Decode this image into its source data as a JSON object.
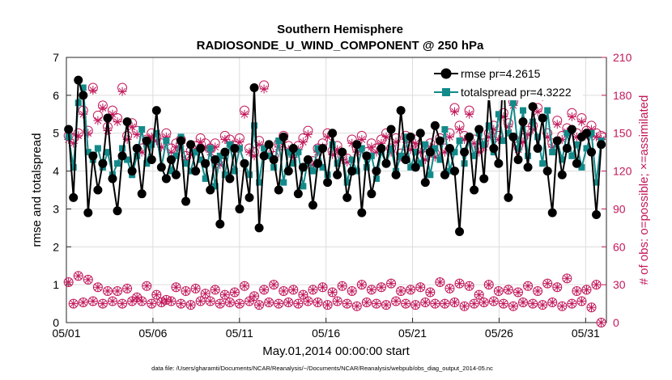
{
  "chart_data": {
    "type": "line",
    "title": "Southern Hemisphere",
    "subtitle": "RADIOSONDE_U_WIND_COMPONENT @ 250 hPa",
    "xlabel": "May.01,2014 00:00:00 start",
    "ylabel": "rmse and totalspread",
    "y2label": "# of obs: o=possible; ×=assimilated",
    "footnote": "data file: /Users/gharamti/Documents/NCAR/Reanalysis/~/Documents/NCAR/Reanalysis/webpub/obs_diag_output_2014-05.nc",
    "xlim": [
      0,
      31.2
    ],
    "ylim": [
      0,
      7
    ],
    "y2lim": [
      0,
      210
    ],
    "x_ticks": [
      0,
      5,
      10,
      15,
      20,
      25,
      30
    ],
    "x_tick_labels": [
      "05/01",
      "05/06",
      "05/11",
      "05/16",
      "05/21",
      "05/26",
      "05/31"
    ],
    "y_ticks": [
      0,
      1,
      2,
      3,
      4,
      5,
      6,
      7
    ],
    "y2_ticks": [
      0,
      30,
      60,
      90,
      120,
      150,
      180,
      210
    ],
    "grid": true,
    "legend_position": "top-right",
    "colors": {
      "rmse": "#000000",
      "totalspread": "#138a8a",
      "obs": "#c2185b"
    },
    "series": [
      {
        "name": "rmse",
        "legend": "rmse pr=4.2615",
        "axis": "left",
        "values": [
          5.1,
          3.3,
          6.4,
          6.0,
          2.9,
          4.4,
          3.5,
          4.2,
          5.4,
          3.8,
          2.95,
          4.4,
          5.3,
          4.0,
          4.6,
          3.4,
          4.8,
          4.3,
          5.6,
          4.1,
          3.8,
          4.3,
          3.9,
          4.8,
          3.2,
          4.7,
          4.0,
          4.6,
          4.2,
          3.5,
          4.3,
          2.6,
          4.5,
          3.8,
          4.6,
          3.0,
          4.2,
          3.3,
          6.2,
          2.5,
          4.4,
          4.7,
          4.3,
          3.5,
          4.9,
          4.0,
          4.6,
          3.4,
          4.1,
          4.3,
          3.1,
          4.2,
          4.6,
          3.7,
          5.0,
          3.9,
          4.5,
          3.3,
          4.0,
          4.7,
          2.9,
          4.4,
          3.4,
          4.0,
          4.6,
          4.2,
          5.1,
          3.9,
          5.6,
          4.3,
          4.9,
          4.1,
          5.0,
          3.7,
          4.5,
          5.2,
          4.8,
          3.9,
          4.6,
          4.0,
          2.4,
          4.5,
          4.9,
          3.5,
          5.1,
          3.8,
          6.0,
          4.6,
          4.2,
          6.7,
          3.3,
          4.9,
          4.3,
          5.3,
          4.1,
          5.7,
          4.6,
          5.4,
          4.0,
          2.9,
          4.8,
          3.9,
          4.6,
          5.1,
          4.2,
          4.9,
          5.0,
          4.5,
          2.85,
          4.7
        ]
      },
      {
        "name": "totalspread",
        "legend": "totalspread pr=4.3222",
        "axis": "left",
        "values": [
          4.9,
          4.1,
          5.8,
          6.2,
          4.5,
          4.3,
          4.6,
          4.1,
          4.5,
          3.9,
          4.2,
          4.6,
          4.3,
          3.9,
          4.4,
          5.1,
          4.2,
          4.7,
          5.0,
          4.1,
          4.8,
          4.0,
          4.4,
          4.9,
          4.2,
          4.0,
          4.5,
          4.3,
          3.8,
          4.6,
          3.6,
          4.4,
          3.9,
          4.7,
          4.0,
          4.6,
          4.2,
          3.9,
          5.2,
          3.7,
          4.6,
          4.4,
          4.1,
          4.8,
          3.7,
          4.5,
          4.2,
          4.5,
          3.6,
          4.3,
          4.0,
          4.6,
          4.1,
          3.9,
          4.7,
          4.2,
          4.5,
          3.7,
          4.3,
          4.0,
          4.6,
          4.1,
          4.4,
          3.8,
          4.5,
          4.2,
          4.6,
          4.0,
          4.4,
          4.9,
          4.1,
          4.5,
          4.2,
          4.7,
          3.9,
          4.6,
          4.3,
          5.1,
          4.0,
          4.5,
          4.8,
          4.2,
          4.9,
          4.4,
          5.0,
          4.7,
          5.2,
          4.5,
          5.5,
          4.8,
          5.0,
          5.8,
          4.6,
          5.6,
          4.4,
          5.3,
          4.9,
          4.2,
          5.6,
          4.5,
          4.8,
          4.3,
          5.0,
          4.4,
          4.7,
          4.1,
          4.6,
          5.0,
          3.7,
          4.8
        ]
      },
      {
        "name": "obs_possible",
        "marker": "o",
        "axis": "right",
        "top_counts": [
          148,
          146,
          150,
          168,
          152,
          186,
          164,
          172,
          155,
          168,
          162,
          186,
          148,
          158,
          152,
          138,
          145,
          150,
          147,
          142,
          150,
          138,
          142,
          145,
          132,
          136,
          140,
          146,
          142,
          138,
          142,
          128,
          148,
          145,
          140,
          146,
          168,
          138,
          135,
          144,
          188,
          136,
          132,
          142,
          148,
          140,
          134,
          140,
          146,
          152,
          128,
          138,
          142,
          150,
          136,
          140,
          132,
          130,
          145,
          138,
          148,
          135,
          142,
          138,
          145,
          150,
          138,
          146,
          134,
          148,
          140,
          145,
          138,
          132,
          142,
          134,
          146,
          138,
          150,
          170,
          156,
          148,
          168,
          145,
          138,
          142,
          150,
          156,
          148,
          166,
          158,
          175,
          140,
          146,
          152,
          156,
          170,
          182,
          150,
          142,
          160,
          148,
          154,
          166,
          150,
          162,
          152,
          156,
          150,
          148
        ],
        "bottom_counts": [
          32,
          15,
          37,
          16,
          34,
          17,
          28,
          15,
          25,
          17,
          25,
          15,
          27,
          17,
          20,
          17,
          29,
          15,
          22,
          16,
          18,
          17,
          28,
          15,
          25,
          14,
          27,
          17,
          23,
          17,
          26,
          15,
          22,
          16,
          24,
          15,
          29,
          17,
          21,
          14,
          26,
          16,
          30,
          15,
          25,
          16,
          26,
          15,
          22,
          17,
          26,
          16,
          28,
          14,
          24,
          17,
          29,
          15,
          25,
          13,
          30,
          16,
          26,
          15,
          28,
          14,
          31,
          17,
          25,
          15,
          26,
          14,
          28,
          16,
          24,
          15,
          32,
          15,
          27,
          16,
          31,
          13,
          29,
          15,
          22,
          16,
          30,
          17,
          25,
          15,
          26,
          13,
          24,
          16,
          29,
          15,
          25,
          14,
          31,
          16,
          28,
          13,
          35,
          15,
          25,
          17,
          26,
          12,
          30,
          0
        ]
      },
      {
        "name": "obs_assimilated",
        "marker": "x",
        "axis": "right",
        "top_counts": [
          145,
          142,
          148,
          165,
          150,
          184,
          160,
          170,
          152,
          165,
          159,
          183,
          145,
          155,
          149,
          135,
          142,
          147,
          144,
          139,
          147,
          135,
          139,
          142,
          129,
          133,
          137,
          143,
          139,
          135,
          139,
          125,
          145,
          142,
          137,
          143,
          165,
          135,
          132,
          141,
          185,
          133,
          129,
          139,
          145,
          137,
          131,
          137,
          143,
          149,
          125,
          135,
          139,
          147,
          133,
          137,
          129,
          127,
          142,
          135,
          145,
          132,
          139,
          135,
          142,
          147,
          135,
          143,
          131,
          145,
          137,
          142,
          135,
          129,
          139,
          131,
          143,
          135,
          147,
          167,
          153,
          145,
          165,
          142,
          135,
          139,
          147,
          153,
          145,
          163,
          155,
          172,
          137,
          143,
          149,
          153,
          167,
          179,
          147,
          139,
          157,
          145,
          151,
          163,
          147,
          159,
          149,
          153,
          147,
          145
        ],
        "bottom_counts": [
          32,
          15,
          37,
          16,
          34,
          17,
          28,
          15,
          25,
          17,
          25,
          15,
          27,
          17,
          20,
          17,
          29,
          15,
          22,
          16,
          18,
          17,
          28,
          15,
          25,
          14,
          27,
          17,
          23,
          17,
          26,
          15,
          22,
          16,
          24,
          15,
          29,
          17,
          21,
          14,
          26,
          16,
          30,
          15,
          25,
          16,
          26,
          15,
          22,
          17,
          26,
          16,
          28,
          14,
          24,
          17,
          29,
          15,
          25,
          13,
          30,
          16,
          26,
          15,
          28,
          14,
          31,
          17,
          25,
          15,
          26,
          14,
          28,
          16,
          24,
          15,
          32,
          15,
          27,
          16,
          31,
          13,
          29,
          15,
          22,
          16,
          30,
          17,
          25,
          15,
          26,
          13,
          24,
          16,
          29,
          15,
          25,
          14,
          31,
          16,
          28,
          13,
          35,
          15,
          25,
          17,
          26,
          12,
          30,
          0
        ]
      }
    ]
  }
}
